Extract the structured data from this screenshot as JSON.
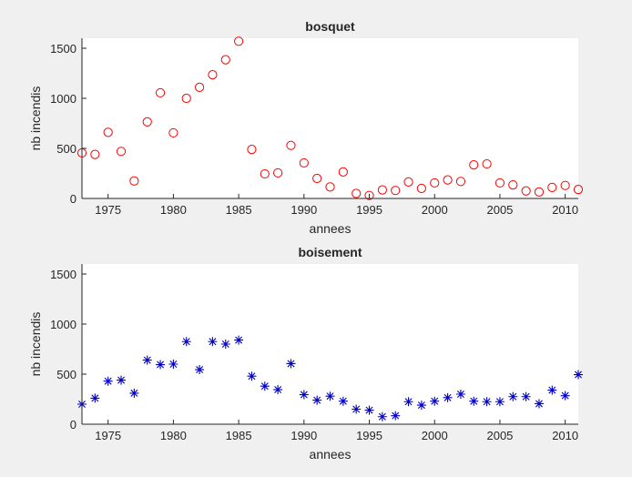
{
  "colors": {
    "figure_bg": "#f0f0f0",
    "axes_bg": "#ffffff",
    "axis": "#262626",
    "bosquet_marker": "#ff0000",
    "boisement_marker": "#0000c8"
  },
  "chart_data": [
    {
      "type": "scatter",
      "title": "bosquet",
      "xlabel": "annees",
      "ylabel": "nb incendis",
      "marker": "circle",
      "color": "#ff0000",
      "xlim": [
        1973,
        2011
      ],
      "ylim": [
        0,
        1600
      ],
      "xticks": [
        1975,
        1980,
        1985,
        1990,
        1995,
        2000,
        2005,
        2010
      ],
      "yticks": [
        0,
        500,
        1000,
        1500
      ],
      "grid": false,
      "x": [
        1973,
        1974,
        1975,
        1976,
        1977,
        1978,
        1979,
        1980,
        1981,
        1982,
        1983,
        1984,
        1985,
        1986,
        1987,
        1988,
        1989,
        1990,
        1991,
        1992,
        1993,
        1994,
        1995,
        1996,
        1997,
        1998,
        1999,
        2000,
        2001,
        2002,
        2003,
        2004,
        2005,
        2006,
        2007,
        2008,
        2009,
        2010,
        2011
      ],
      "y": [
        455,
        440,
        660,
        470,
        175,
        765,
        1055,
        655,
        1000,
        1110,
        1235,
        1385,
        1570,
        490,
        245,
        255,
        530,
        355,
        200,
        115,
        265,
        50,
        30,
        85,
        80,
        165,
        100,
        155,
        185,
        170,
        335,
        345,
        155,
        135,
        75,
        65,
        110,
        130,
        90
      ]
    },
    {
      "type": "scatter",
      "title": "boisement",
      "xlabel": "annees",
      "ylabel": "nb incendis",
      "marker": "asterisk",
      "color": "#0000c8",
      "xlim": [
        1973,
        2011
      ],
      "ylim": [
        0,
        1600
      ],
      "xticks": [
        1975,
        1980,
        1985,
        1990,
        1995,
        2000,
        2005,
        2010
      ],
      "yticks": [
        0,
        500,
        1000,
        1500
      ],
      "grid": false,
      "x": [
        1973,
        1974,
        1975,
        1976,
        1977,
        1978,
        1979,
        1980,
        1981,
        1982,
        1983,
        1984,
        1985,
        1986,
        1987,
        1988,
        1989,
        1990,
        1991,
        1992,
        1993,
        1994,
        1995,
        1996,
        1997,
        1998,
        1999,
        2000,
        2001,
        2002,
        2003,
        2004,
        2005,
        2006,
        2007,
        2008,
        2009,
        2010,
        2011
      ],
      "y": [
        200,
        260,
        430,
        440,
        310,
        640,
        595,
        600,
        825,
        545,
        825,
        800,
        840,
        480,
        380,
        345,
        605,
        295,
        240,
        280,
        230,
        150,
        140,
        75,
        85,
        225,
        190,
        230,
        265,
        300,
        230,
        225,
        225,
        275,
        275,
        205,
        340,
        285,
        495
      ]
    }
  ]
}
